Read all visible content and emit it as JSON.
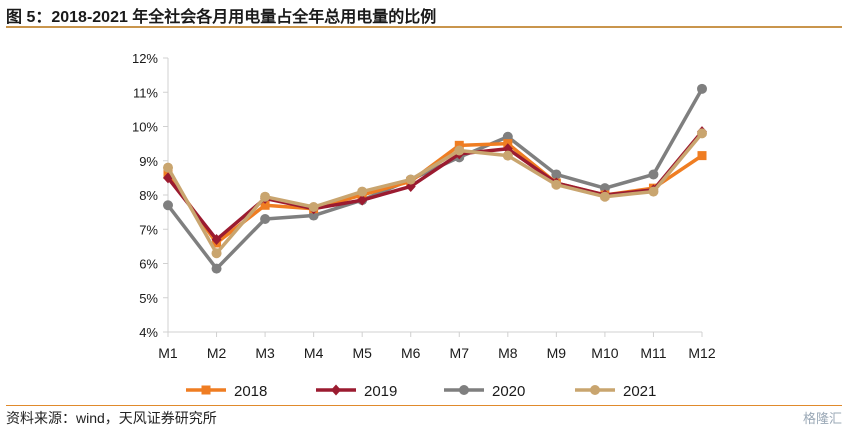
{
  "title": "图 5：2018-2021 年全社会各月用电量占全年总用电量的比例",
  "source": "资料来源：wind，天风证券研究所",
  "watermark": "格隆汇",
  "chart_data": {
    "type": "line",
    "categories": [
      "M1",
      "M2",
      "M3",
      "M4",
      "M5",
      "M6",
      "M7",
      "M8",
      "M9",
      "M10",
      "M11",
      "M12"
    ],
    "ylim": [
      4,
      12
    ],
    "yticks": [
      4,
      5,
      6,
      7,
      8,
      9,
      10,
      11,
      12
    ],
    "ytick_labels": [
      "4%",
      "5%",
      "6%",
      "7%",
      "8%",
      "9%",
      "10%",
      "11%",
      "12%"
    ],
    "grid": false,
    "legend_position": "bottom",
    "series": [
      {
        "name": "2018",
        "color": "#ef7d22",
        "marker": "square",
        "values": [
          8.6,
          6.6,
          7.7,
          7.6,
          8.0,
          8.4,
          9.45,
          9.5,
          8.35,
          8.0,
          8.2,
          9.15
        ]
      },
      {
        "name": "2019",
        "color": "#9b1b30",
        "marker": "diamond",
        "values": [
          8.5,
          6.7,
          7.9,
          7.6,
          7.85,
          8.25,
          9.2,
          9.35,
          8.35,
          8.0,
          8.15,
          9.85
        ]
      },
      {
        "name": "2020",
        "color": "#7f7f7f",
        "marker": "circle",
        "values": [
          7.7,
          5.85,
          7.3,
          7.4,
          7.85,
          8.45,
          9.1,
          9.7,
          8.6,
          8.2,
          8.6,
          11.1
        ]
      },
      {
        "name": "2021",
        "color": "#c9a56f",
        "marker": "circle",
        "values": [
          8.8,
          6.3,
          7.95,
          7.65,
          8.1,
          8.45,
          9.3,
          9.15,
          8.3,
          7.95,
          8.1,
          9.8
        ]
      }
    ]
  }
}
